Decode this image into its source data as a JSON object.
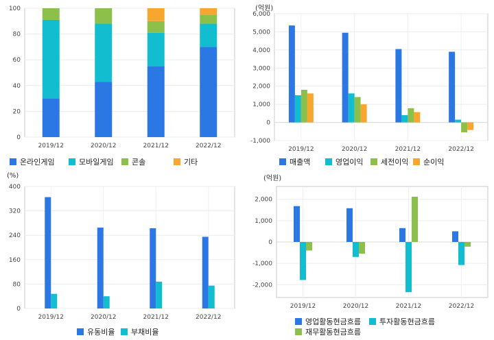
{
  "colors": {
    "blue": "#2b78e4",
    "cyan": "#12bdd0",
    "green": "#8dc04a",
    "orange": "#f7a730"
  },
  "chart_data": [
    {
      "id": "revenue-mix",
      "type": "bar",
      "stacked": true,
      "unit_label": "",
      "categories": [
        "2019/12",
        "2020/12",
        "2021/12",
        "2022/12"
      ],
      "ylim": [
        0,
        100
      ],
      "yticks": [
        0,
        20,
        40,
        60,
        80,
        100
      ],
      "series": [
        {
          "name": "온라인게임",
          "color": "#2b78e4",
          "values": [
            30,
            43,
            55,
            70
          ]
        },
        {
          "name": "모바일게임",
          "color": "#12bdd0",
          "values": [
            61,
            45,
            26,
            18
          ]
        },
        {
          "name": "콘솔",
          "color": "#8dc04a",
          "values": [
            9,
            12,
            9,
            7
          ]
        },
        {
          "name": "기타",
          "color": "#f7a730",
          "values": [
            0,
            0,
            10,
            5
          ]
        }
      ],
      "legend_position": "bottom"
    },
    {
      "id": "income",
      "type": "bar",
      "stacked": false,
      "unit_label": "(억원)",
      "categories": [
        "2019/12",
        "2020/12",
        "2021/12",
        "2022/12"
      ],
      "ylim": [
        -1000,
        6000
      ],
      "yticks": [
        -1000,
        0,
        1000,
        2000,
        3000,
        4000,
        5000,
        6000
      ],
      "ytick_labels": [
        "-1,000",
        "0",
        "1,000",
        "2,000",
        "3,000",
        "4,000",
        "5,000",
        "6,000"
      ],
      "series": [
        {
          "name": "매출액",
          "color": "#2b78e4",
          "values": [
            5350,
            4950,
            4050,
            3900
          ]
        },
        {
          "name": "영업이익",
          "color": "#12bdd0",
          "values": [
            1500,
            1600,
            400,
            150
          ]
        },
        {
          "name": "세전이익",
          "color": "#8dc04a",
          "values": [
            1800,
            1400,
            780,
            -550
          ]
        },
        {
          "name": "순이익",
          "color": "#f7a730",
          "values": [
            1600,
            1000,
            570,
            -420
          ]
        }
      ],
      "legend_position": "bottom"
    },
    {
      "id": "ratios",
      "type": "bar",
      "stacked": false,
      "unit_label": "(%)",
      "categories": [
        "2019/12",
        "2020/12",
        "2021/12",
        "2022/12"
      ],
      "ylim": [
        0,
        400
      ],
      "yticks": [
        0,
        80,
        160,
        240,
        320,
        400
      ],
      "series": [
        {
          "name": "유동비율",
          "color": "#2b78e4",
          "values": [
            365,
            265,
            263,
            235
          ]
        },
        {
          "name": "부채비율",
          "color": "#12bdd0",
          "values": [
            48,
            40,
            88,
            75
          ]
        }
      ],
      "legend_position": "bottom"
    },
    {
      "id": "cashflow",
      "type": "bar",
      "stacked": false,
      "unit_label": "(억원)",
      "categories": [
        "2019/12",
        "2020/12",
        "2021/12",
        "2022/12"
      ],
      "ylim": [
        -2600,
        2600
      ],
      "yticks": [
        -2000,
        -1000,
        0,
        1000,
        2000
      ],
      "ytick_labels": [
        "-2,000",
        "-1,000",
        "0",
        "1,000",
        "2,000"
      ],
      "series": [
        {
          "name": "영업활동현금흐름",
          "color": "#2b78e4",
          "values": [
            1680,
            1580,
            650,
            500
          ]
        },
        {
          "name": "투자활동현금흐름",
          "color": "#12bdd0",
          "values": [
            -1780,
            -700,
            -2350,
            -1080
          ]
        },
        {
          "name": "재무활동현금흐름",
          "color": "#8dc04a",
          "values": [
            -400,
            -550,
            2120,
            -220
          ]
        }
      ],
      "legend_position": "bottom"
    }
  ]
}
